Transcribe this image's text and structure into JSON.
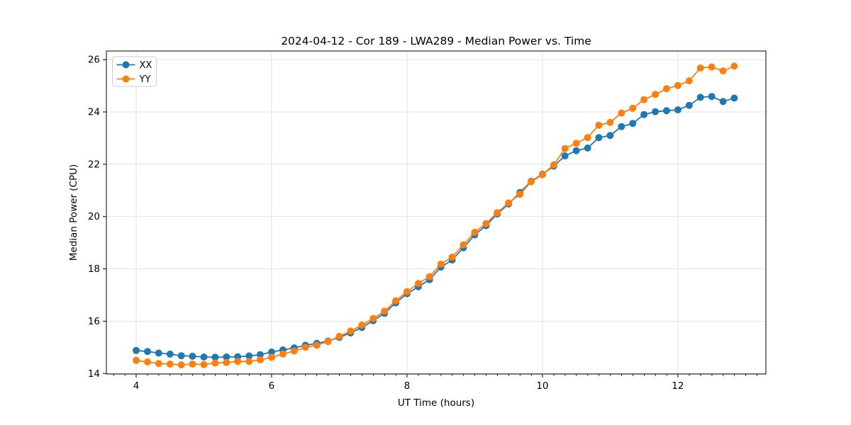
{
  "figure": {
    "background": "#ffffff",
    "border_color": "#000000",
    "grid_color": "#e0e0e0"
  },
  "chart_data": {
    "type": "line",
    "title": "2024-04-12 - Cor 189 - LWA289 - Median Power vs. Time",
    "xlabel": "UT Time (hours)",
    "ylabel": "Median Power (CPU)",
    "xlim": [
      3.56,
      13.3
    ],
    "ylim": [
      13.98,
      26.33
    ],
    "xticks": [
      4,
      6,
      8,
      10,
      12
    ],
    "yticks": [
      14,
      16,
      18,
      20,
      22,
      24,
      26
    ],
    "x_minor_step": 0.1667,
    "grid": true,
    "legend_position": "upper left",
    "legend_entries": [
      "XX",
      "YY"
    ],
    "x": [
      4.0,
      4.167,
      4.333,
      4.5,
      4.667,
      4.833,
      5.0,
      5.167,
      5.333,
      5.5,
      5.667,
      5.833,
      6.0,
      6.167,
      6.333,
      6.5,
      6.667,
      6.833,
      7.0,
      7.167,
      7.333,
      7.5,
      7.667,
      7.833,
      8.0,
      8.167,
      8.333,
      8.5,
      8.667,
      8.833,
      9.0,
      9.167,
      9.333,
      9.5,
      9.667,
      9.833,
      10.0,
      10.167,
      10.333,
      10.5,
      10.667,
      10.833,
      11.0,
      11.167,
      11.333,
      11.5,
      11.667,
      11.833,
      12.0,
      12.167,
      12.333,
      12.5,
      12.667,
      12.833
    ],
    "series": [
      {
        "name": "XX",
        "color": "#1f77b4",
        "values": [
          14.88,
          14.84,
          14.78,
          14.74,
          14.68,
          14.66,
          14.63,
          14.62,
          14.63,
          14.64,
          14.67,
          14.72,
          14.82,
          14.9,
          14.98,
          15.08,
          15.15,
          15.24,
          15.38,
          15.55,
          15.76,
          16.02,
          16.3,
          16.7,
          17.05,
          17.32,
          17.59,
          18.07,
          18.34,
          18.81,
          19.3,
          19.65,
          20.1,
          20.48,
          20.92,
          21.35,
          21.62,
          21.93,
          22.32,
          22.52,
          22.62,
          23.02,
          23.1,
          23.44,
          23.56,
          23.9,
          24.01,
          24.05,
          24.08,
          24.25,
          24.56,
          24.59,
          24.4,
          24.53
        ]
      },
      {
        "name": "YY",
        "color": "#ff7f0e",
        "values": [
          14.5,
          14.44,
          14.38,
          14.36,
          14.33,
          14.36,
          14.34,
          14.4,
          14.42,
          14.46,
          14.46,
          14.52,
          14.62,
          14.74,
          14.86,
          15.0,
          15.08,
          15.22,
          15.42,
          15.62,
          15.85,
          16.1,
          16.38,
          16.78,
          17.13,
          17.44,
          17.7,
          18.18,
          18.45,
          18.92,
          19.4,
          19.73,
          20.15,
          20.52,
          20.85,
          21.33,
          21.6,
          21.98,
          22.6,
          22.8,
          23.02,
          23.49,
          23.6,
          23.96,
          24.14,
          24.47,
          24.67,
          24.89,
          25.01,
          25.19,
          25.68,
          25.72,
          25.57,
          25.75
        ]
      }
    ]
  }
}
